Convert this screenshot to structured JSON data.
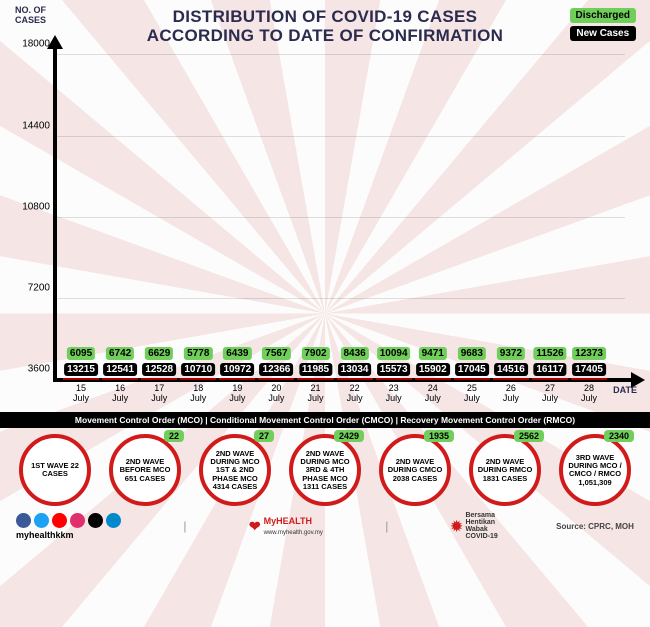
{
  "header": {
    "ncases_label": "NO. OF\nCASES",
    "title_l1": "DISTRIBUTION OF COVID-19 CASES",
    "title_l2": "ACCORDING TO DATE OF CONFIRMATION",
    "legend_discharged": "Discharged",
    "legend_newcases": "New Cases",
    "date_axis_label": "DATE"
  },
  "chart": {
    "type": "bar",
    "ymin": 3600,
    "ymax": 18000,
    "yticks": [
      3600,
      7200,
      10800,
      14400,
      18000
    ],
    "bar_color": "#d11a1a",
    "grid_color": "rgba(0,0,0,0.12)",
    "discharged_color": "#6fcf5a",
    "newcases_color": "#000000",
    "categories": [
      {
        "d": "15",
        "m": "July",
        "discharged": 6095,
        "new": 13215
      },
      {
        "d": "16",
        "m": "July",
        "discharged": 6742,
        "new": 12541
      },
      {
        "d": "17",
        "m": "July",
        "discharged": 6629,
        "new": 12528
      },
      {
        "d": "18",
        "m": "July",
        "discharged": 5778,
        "new": 10710
      },
      {
        "d": "19",
        "m": "July",
        "discharged": 6439,
        "new": 10972
      },
      {
        "d": "20",
        "m": "July",
        "discharged": 7567,
        "new": 12366
      },
      {
        "d": "21",
        "m": "July",
        "discharged": 7902,
        "new": 11985
      },
      {
        "d": "22",
        "m": "July",
        "discharged": 8436,
        "new": 13034
      },
      {
        "d": "23",
        "m": "July",
        "discharged": 10094,
        "new": 15573
      },
      {
        "d": "24",
        "m": "July",
        "discharged": 9471,
        "new": 15902
      },
      {
        "d": "25",
        "m": "July",
        "discharged": 9683,
        "new": 17045
      },
      {
        "d": "26",
        "m": "July",
        "discharged": 9372,
        "new": 14516
      },
      {
        "d": "27",
        "m": "July",
        "discharged": 11526,
        "new": 16117
      },
      {
        "d": "28",
        "m": "July",
        "discharged": 12373,
        "new": 17405
      }
    ]
  },
  "strip": {
    "text": "Movement Control Order (MCO)  |  Conditional Movement Control Order (CMCO)  |  Recovery Movement Control Order (RMCO)"
  },
  "waves": [
    {
      "badge": null,
      "text": "1ST WAVE 22 CASES"
    },
    {
      "badge": "22",
      "text": "2ND WAVE BEFORE MCO 651 CASES"
    },
    {
      "badge": "27",
      "text": "2ND WAVE DURING MCO 1ST & 2ND PHASE MCO 4314 CASES"
    },
    {
      "badge": "2429",
      "text": "2ND WAVE DURING MCO 3RD & 4TH PHASE MCO 1311 CASES"
    },
    {
      "badge": "1935",
      "text": "2ND WAVE DURING CMCO 2038 CASES"
    },
    {
      "badge": "2562",
      "text": "2ND WAVE DURING RMCO 1831 CASES"
    },
    {
      "badge": "2340",
      "text": "3RD WAVE DURING MCO / CMCO / RMCO 1,051,309"
    }
  ],
  "footer": {
    "handle": "myhealthkkm",
    "brand1": "MyHEALTH",
    "brand1_sub": "www.myhealth.gov.my",
    "brand2_l1": "Bersama",
    "brand2_l2": "Hentikan",
    "brand2_l3": "Wabak",
    "brand2_l4": "COVID-19",
    "source": "Source: CPRC, MOH",
    "social_colors": [
      "#3b5998",
      "#1da1f2",
      "#ff0000",
      "#e1306c",
      "#000000",
      "#0088cc"
    ]
  }
}
